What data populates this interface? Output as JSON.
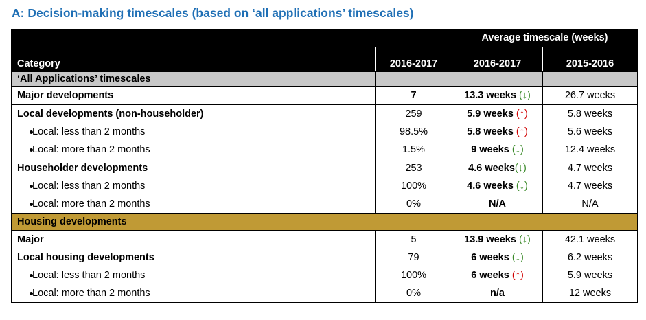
{
  "title": "A: Decision-making timescales (based on ‘all applications’ timescales)",
  "header": {
    "avg_label": "Average timescale (weeks)",
    "category": "Category",
    "col_count": "2016-2017",
    "col_current": "2016-2017",
    "col_previous": "2015-2016"
  },
  "sections": [
    {
      "name": "‘All Applications’ timescales",
      "color": "#c8c8c8"
    },
    {
      "name": "Housing developments",
      "color": "#c09a35"
    }
  ],
  "rows": [
    {
      "label": "Major developments",
      "count": "7",
      "current": "13.3 weeks",
      "arrow": "(↓)",
      "previous": "26.7 weeks"
    },
    {
      "label": "Local developments (non-householder)",
      "count": "259",
      "current": "5.9 weeks",
      "arrow": "(↑)",
      "previous": "5.8 weeks"
    },
    {
      "label": "Local: less than 2 months",
      "count": "98.5%",
      "current": "5.8 weeks",
      "arrow": "(↑)",
      "previous": "5.6 weeks"
    },
    {
      "label": "Local: more than 2 months",
      "count": "1.5%",
      "current": "9 weeks",
      "arrow": "(↓)",
      "previous": "12.4 weeks"
    },
    {
      "label": "Householder developments",
      "count": "253",
      "current": "4.6 weeks",
      "arrow": "(↓)",
      "previous": "4.7 weeks"
    },
    {
      "label": "Local: less than 2 months",
      "count": "100%",
      "current": "4.6 weeks",
      "arrow": "(↓)",
      "previous": "4.7 weeks"
    },
    {
      "label": "Local: more than 2 months",
      "count": "0%",
      "current": "N/A",
      "arrow": "",
      "previous": "N/A"
    },
    {
      "label": "Major",
      "count": "5",
      "current": "13.9 weeks",
      "arrow": "(↓)",
      "previous": "42.1 weeks"
    },
    {
      "label": "Local housing developments",
      "count": "79",
      "current": "6 weeks",
      "arrow": "(↓)",
      "previous": "6.2 weeks"
    },
    {
      "label": "Local: less than 2 months",
      "count": "100%",
      "current": "6 weeks",
      "arrow": "(↑)",
      "previous": "5.9 weeks"
    },
    {
      "label": "Local: more than 2 months",
      "count": "0%",
      "current": "n/a",
      "arrow": "",
      "previous": "12 weeks"
    }
  ],
  "colors": {
    "heading": "#1f6fb5",
    "arrow_up": "#d00000",
    "arrow_down": "#3b8a2a",
    "header_bg": "#000000"
  }
}
